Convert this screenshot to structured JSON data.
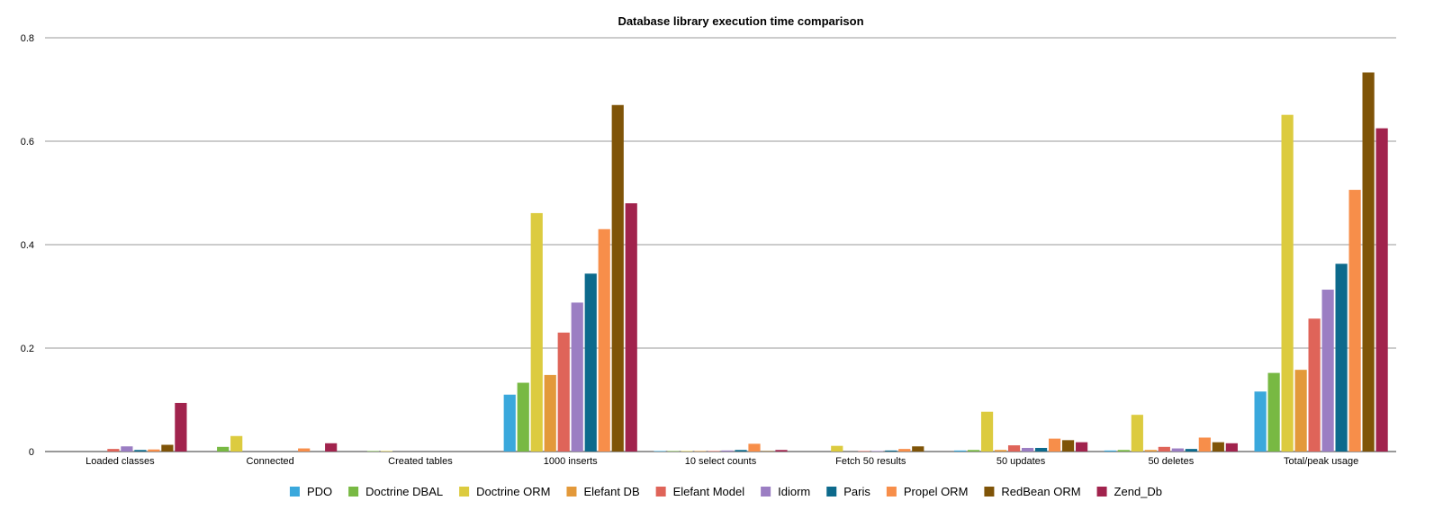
{
  "chart_data": {
    "type": "bar",
    "title": "Database library execution time comparison",
    "xlabel": "",
    "ylabel": "",
    "ylim": [
      0,
      0.8
    ],
    "yticks": [
      "0",
      "0.2",
      "0.4",
      "0.6",
      "0.8"
    ],
    "grid": true,
    "legend_position": "bottom",
    "categories": [
      "Loaded classes",
      "Connected",
      "Created tables",
      "1000 inserts",
      "10 select counts",
      "Fetch 50 results",
      "50 updates",
      "50 deletes",
      "Total/peak usage"
    ],
    "series": [
      {
        "name": "PDO",
        "color": "#3aa8dc",
        "values": [
          0.0,
          0.0,
          0.0,
          0.11,
          0.001,
          0.0,
          0.002,
          0.002,
          0.116
        ]
      },
      {
        "name": "Doctrine DBAL",
        "color": "#78b943",
        "values": [
          0.0,
          0.009,
          0.001,
          0.133,
          0.001,
          0.0,
          0.003,
          0.003,
          0.152
        ]
      },
      {
        "name": "Doctrine ORM",
        "color": "#dccb3f",
        "values": [
          0.0,
          0.03,
          0.001,
          0.461,
          0.001,
          0.011,
          0.077,
          0.071,
          0.651
        ]
      },
      {
        "name": "Elefant DB",
        "color": "#e3993a",
        "values": [
          0.0,
          0.0,
          0.0,
          0.148,
          0.001,
          0.0,
          0.003,
          0.003,
          0.158
        ]
      },
      {
        "name": "Elefant Model",
        "color": "#df6459",
        "values": [
          0.005,
          0.0,
          0.0,
          0.23,
          0.001,
          0.001,
          0.012,
          0.009,
          0.257
        ]
      },
      {
        "name": "Idiorm",
        "color": "#9b7ec3",
        "values": [
          0.01,
          0.0,
          0.0,
          0.288,
          0.002,
          0.001,
          0.007,
          0.006,
          0.313
        ]
      },
      {
        "name": "Paris",
        "color": "#0d6a8c",
        "values": [
          0.003,
          0.0,
          0.0,
          0.344,
          0.003,
          0.002,
          0.007,
          0.005,
          0.363
        ]
      },
      {
        "name": "Propel ORM",
        "color": "#f78e4a",
        "values": [
          0.004,
          0.006,
          0.0,
          0.43,
          0.015,
          0.005,
          0.025,
          0.027,
          0.506
        ]
      },
      {
        "name": "RedBean ORM",
        "color": "#7f5408",
        "values": [
          0.013,
          0.0,
          0.0,
          0.67,
          0.001,
          0.01,
          0.022,
          0.018,
          0.733
        ]
      },
      {
        "name": "Zend_Db",
        "color": "#a1234d",
        "values": [
          0.094,
          0.016,
          0.0,
          0.48,
          0.003,
          0.0,
          0.018,
          0.016,
          0.625
        ]
      }
    ]
  }
}
